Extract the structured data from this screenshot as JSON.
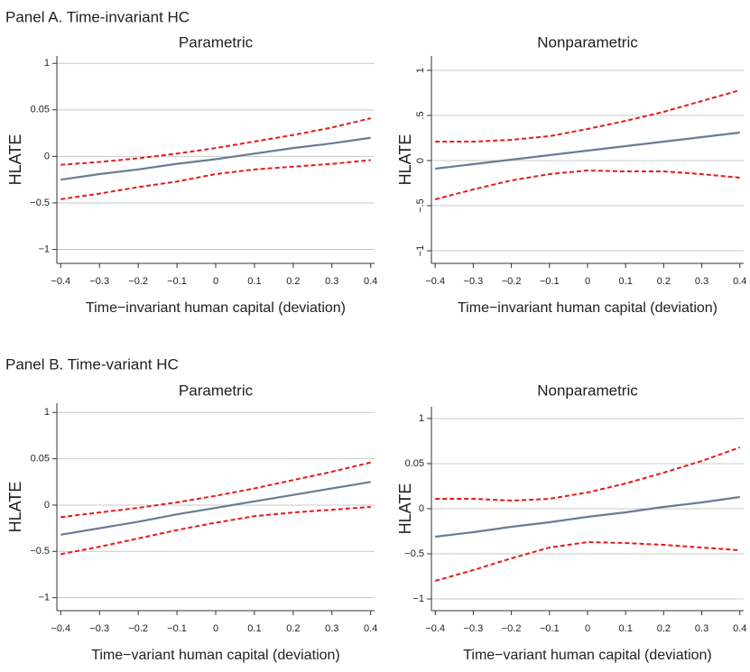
{
  "panel_titles": [
    "Panel A. Time-invariant HC",
    "Panel B. Time-variant HC"
  ],
  "chart_data": [
    {
      "type": "line",
      "title": "Parametric",
      "ylabel": "HLATE",
      "xlabel": "Time−invariant human capital (deviation)",
      "x": [
        -0.4,
        -0.3,
        -0.2,
        -0.1,
        0,
        0.1,
        0.2,
        0.3,
        0.4
      ],
      "xlim": [
        -0.41,
        0.41
      ],
      "ylim": [
        -0.115,
        0.108
      ],
      "xticks": [
        {
          "value": -0.4,
          "label": "−0.4"
        },
        {
          "value": -0.3,
          "label": "−0.3"
        },
        {
          "value": -0.2,
          "label": "−0.2"
        },
        {
          "value": -0.1,
          "label": "−0.1"
        },
        0,
        0.1,
        0.2,
        0.3,
        0.4
      ],
      "yticks": [
        {
          "value": 0.1,
          "label": "1"
        },
        0.05,
        0,
        {
          "value": -0.05,
          "label": "−0.5"
        },
        {
          "value": -0.1,
          "label": "−1"
        }
      ],
      "grid": true,
      "yticklabels_rotated": false,
      "series": [
        {
          "color": "#e8191b",
          "linestyle": "dashed",
          "values": [
            -0.009,
            -0.006,
            -0.002,
            0.003,
            0.009,
            0.016,
            0.023,
            0.031,
            0.041
          ]
        },
        {
          "color": "#6b7b94",
          "linestyle": "solid",
          "values": [
            -0.025,
            -0.019,
            -0.014,
            -0.008,
            -0.003,
            0.003,
            0.009,
            0.014,
            0.02
          ]
        },
        {
          "color": "#e8191b",
          "linestyle": "dashed",
          "values": [
            -0.046,
            -0.04,
            -0.033,
            -0.027,
            -0.019,
            -0.014,
            -0.011,
            -0.008,
            -0.004
          ]
        }
      ]
    },
    {
      "type": "line",
      "title": "Nonparametric",
      "ylabel": "HLATE",
      "xlabel": "Time−invariant human capital (deviation)",
      "x": [
        -0.4,
        -0.3,
        -0.2,
        -0.1,
        0,
        0.1,
        0.2,
        0.3,
        0.4
      ],
      "xlim": [
        -0.41,
        0.41
      ],
      "ylim": [
        -0.114,
        0.116
      ],
      "xticks": [
        {
          "value": -0.4,
          "label": "−0.4"
        },
        {
          "value": -0.3,
          "label": "−0.3"
        },
        {
          "value": -0.2,
          "label": "−0.2"
        },
        {
          "value": -0.1,
          "label": "−0.1"
        },
        0,
        0.1,
        0.2,
        0.3,
        0.4
      ],
      "yticks": [
        {
          "value": 0.1,
          "label": "1"
        },
        {
          "value": 0.05,
          "label": ".5"
        },
        0,
        {
          "value": -0.05,
          "label": "−.5"
        },
        {
          "value": -0.1,
          "label": "−1"
        }
      ],
      "grid": true,
      "yticklabels_rotated": true,
      "series": [
        {
          "color": "#e8191b",
          "linestyle": "dashed",
          "values": [
            0.021,
            0.021,
            0.023,
            0.027,
            0.035,
            0.044,
            0.054,
            0.066,
            0.078
          ]
        },
        {
          "color": "#6b7b94",
          "linestyle": "solid",
          "values": [
            -0.009,
            -0.004,
            0.001,
            0.006,
            0.011,
            0.016,
            0.021,
            0.026,
            0.031
          ]
        },
        {
          "color": "#e8191b",
          "linestyle": "dashed",
          "values": [
            -0.043,
            -0.032,
            -0.022,
            -0.015,
            -0.011,
            -0.012,
            -0.012,
            -0.015,
            -0.019
          ]
        }
      ]
    },
    {
      "type": "line",
      "title": "Parametric",
      "ylabel": "HLATE",
      "xlabel": "Time−variant human capital (deviation)",
      "x": [
        -0.4,
        -0.3,
        -0.2,
        -0.1,
        0,
        0.1,
        0.2,
        0.3,
        0.4
      ],
      "xlim": [
        -0.41,
        0.41
      ],
      "ylim": [
        -0.114,
        0.11
      ],
      "xticks": [
        {
          "value": -0.4,
          "label": "−0.4"
        },
        {
          "value": -0.3,
          "label": "−0.3"
        },
        {
          "value": -0.2,
          "label": "−0.2"
        },
        {
          "value": -0.1,
          "label": "−0.1"
        },
        0,
        0.1,
        0.2,
        0.3,
        0.4
      ],
      "yticks": [
        {
          "value": 0.1,
          "label": "1"
        },
        0.05,
        0,
        {
          "value": -0.05,
          "label": "−0.5"
        },
        {
          "value": -0.1,
          "label": "−1"
        }
      ],
      "grid": true,
      "yticklabels_rotated": false,
      "series": [
        {
          "color": "#e8191b",
          "linestyle": "dashed",
          "values": [
            -0.013,
            -0.008,
            -0.003,
            0.003,
            0.01,
            0.018,
            0.027,
            0.036,
            0.046
          ]
        },
        {
          "color": "#6b7b94",
          "linestyle": "solid",
          "values": [
            -0.032,
            -0.025,
            -0.018,
            -0.01,
            -0.003,
            0.004,
            0.011,
            0.018,
            0.025
          ]
        },
        {
          "color": "#e8191b",
          "linestyle": "dashed",
          "values": [
            -0.053,
            -0.045,
            -0.036,
            -0.027,
            -0.019,
            -0.012,
            -0.008,
            -0.005,
            -0.002
          ]
        }
      ]
    },
    {
      "type": "line",
      "title": "Nonparametric",
      "ylabel": "HLATE",
      "xlabel": "Time−variant human capital (deviation)",
      "x": [
        -0.4,
        -0.3,
        -0.2,
        -0.1,
        0,
        0.1,
        0.2,
        0.3,
        0.4
      ],
      "xlim": [
        -0.41,
        0.41
      ],
      "ylim": [
        -0.113,
        0.113
      ],
      "xticks": [
        {
          "value": -0.4,
          "label": "−0.4"
        },
        {
          "value": -0.3,
          "label": "−0.3"
        },
        {
          "value": -0.2,
          "label": "−0.2"
        },
        {
          "value": -0.1,
          "label": "−0.1"
        },
        0,
        0.1,
        0.2,
        0.3,
        0.4
      ],
      "yticks": [
        {
          "value": 0.1,
          "label": "1"
        },
        0.05,
        0,
        {
          "value": -0.05,
          "label": "−0.5"
        },
        {
          "value": -0.1,
          "label": "−1"
        }
      ],
      "grid": true,
      "yticklabels_rotated": false,
      "series": [
        {
          "color": "#e8191b",
          "linestyle": "dashed",
          "values": [
            0.011,
            0.011,
            0.009,
            0.011,
            0.018,
            0.028,
            0.04,
            0.053,
            0.068
          ]
        },
        {
          "color": "#6b7b94",
          "linestyle": "solid",
          "values": [
            -0.031,
            -0.026,
            -0.02,
            -0.015,
            -0.009,
            -0.004,
            0.002,
            0.007,
            0.013
          ]
        },
        {
          "color": "#e8191b",
          "linestyle": "dashed",
          "values": [
            -0.08,
            -0.068,
            -0.055,
            -0.043,
            -0.037,
            -0.038,
            -0.04,
            -0.043,
            -0.046
          ]
        }
      ]
    }
  ]
}
